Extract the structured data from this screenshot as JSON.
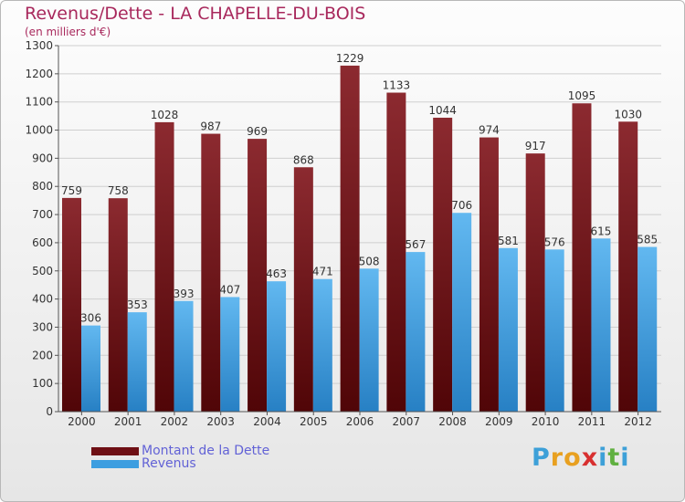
{
  "header": {
    "title": "Revenus/Dette - LA CHAPELLE-DU-BOIS",
    "subtitle": "(en milliers d'€)"
  },
  "chart_data": {
    "type": "bar",
    "title": "Revenus/Dette - LA CHAPELLE-DU-BOIS",
    "subtitle": "(en milliers d'€)",
    "categories": [
      "2000",
      "2001",
      "2002",
      "2003",
      "2004",
      "2005",
      "2006",
      "2007",
      "2008",
      "2009",
      "2010",
      "2011",
      "2012"
    ],
    "series": [
      {
        "name": "Montant de la Dette",
        "color": "#7a1a1e",
        "values": [
          759,
          758,
          1028,
          987,
          969,
          868,
          1229,
          1133,
          1044,
          974,
          917,
          1095,
          1030
        ]
      },
      {
        "name": "Revenus",
        "color": "#3d9ee0",
        "values": [
          306,
          353,
          393,
          407,
          463,
          471,
          508,
          567,
          706,
          581,
          576,
          615,
          585
        ]
      }
    ],
    "ylim": [
      0,
      1300
    ],
    "yticks": [
      0,
      100,
      200,
      300,
      400,
      500,
      600,
      700,
      800,
      900,
      1000,
      1100,
      1200,
      1300
    ],
    "grid": true,
    "legend_position": "bottom-left"
  },
  "legend": {
    "items": [
      {
        "label": "Montant de la Dette",
        "color": "#6e0f14"
      },
      {
        "label": "Revenus",
        "color": "#3d9ee0"
      }
    ]
  },
  "logo": {
    "letters": [
      "P",
      "r",
      "o",
      "x",
      "i",
      "t",
      "i"
    ],
    "colors": [
      "#3da0d8",
      "#e8a020",
      "#e8a020",
      "#d83030",
      "#3da0d8",
      "#60b040",
      "#3da0d8"
    ]
  }
}
